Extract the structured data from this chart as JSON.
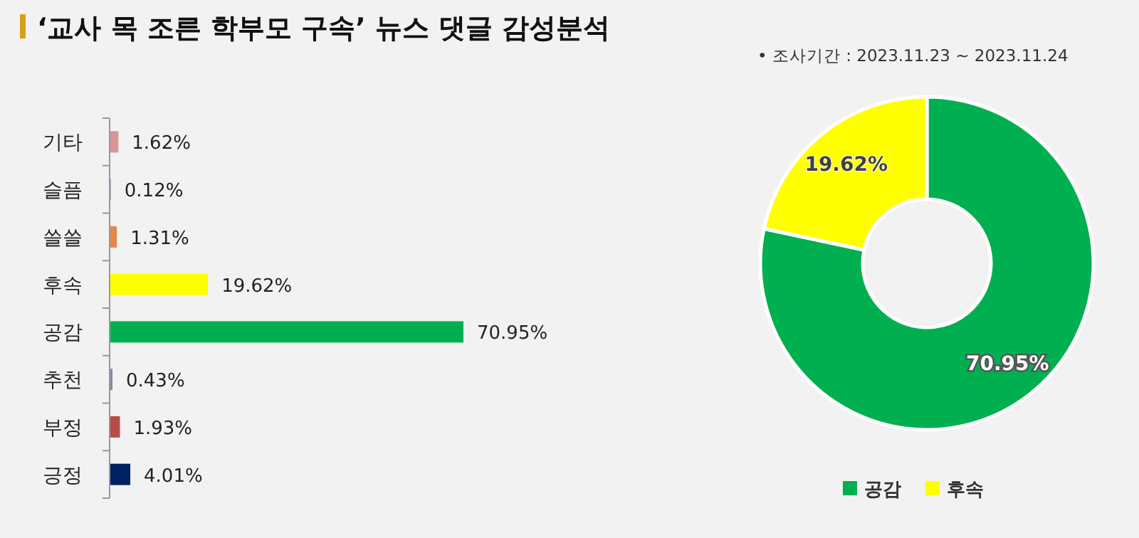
{
  "chart_data": [
    {
      "type": "bar",
      "orientation": "horizontal",
      "title": "‘교사 목 조른 학부모 구속’ 뉴스 댓글 감성분석",
      "categories": [
        "기타",
        "슬픔",
        "쓸쓸",
        "후속",
        "공감",
        "추천",
        "부정",
        "긍정"
      ],
      "values": [
        1.62,
        0.12,
        1.31,
        19.62,
        70.95,
        0.43,
        1.93,
        4.01
      ],
      "colors": [
        "#d99594",
        "#9ea3c0",
        "#e2894a",
        "#ffff00",
        "#00b050",
        "#8a86a8",
        "#b84a47",
        "#002060"
      ],
      "value_labels": [
        "1.62%",
        "0.12%",
        "1.31%",
        "19.62%",
        "70.95%",
        "0.43%",
        "1.93%",
        "4.01%"
      ]
    },
    {
      "type": "donut",
      "subtitle": "•   조사기간 : 2023.11.23 ~ 2023.11.24",
      "categories": [
        "공감",
        "후속"
      ],
      "values": [
        70.95,
        19.62
      ],
      "colors": [
        "#00b050",
        "#ffff00"
      ],
      "value_labels": [
        "70.95%",
        "19.62%"
      ],
      "legend": "bottom"
    }
  ]
}
